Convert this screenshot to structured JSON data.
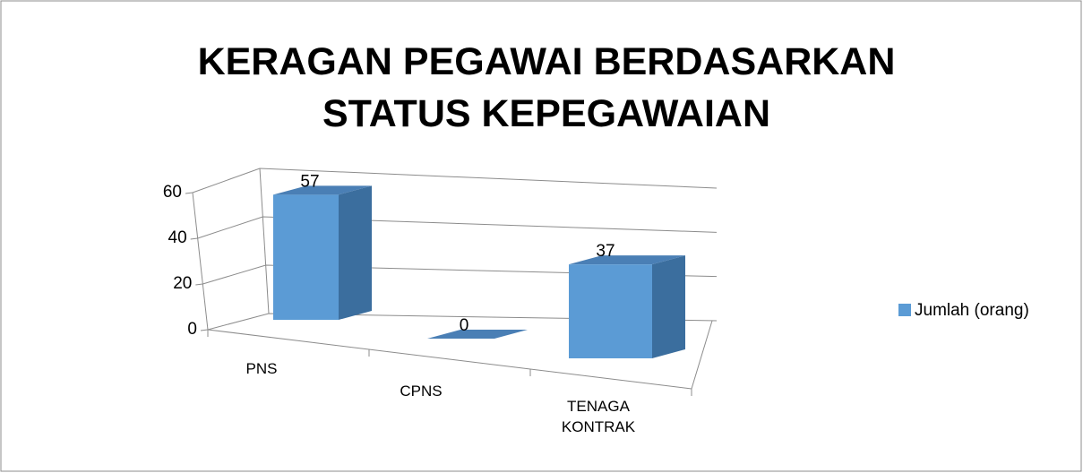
{
  "chart_data": {
    "type": "bar3d",
    "title": "KERAGAN PEGAWAI BERDASARKAN STATUS KEPEGAWAIAN",
    "categories": [
      "PNS",
      "CPNS",
      "TENAGA KONTRAK"
    ],
    "series": [
      {
        "name": "Jumlah (orang)",
        "color": "#5b9bd5",
        "values": [
          57,
          0,
          37
        ]
      }
    ],
    "ylim": [
      0,
      60
    ],
    "yticks": [
      0,
      20,
      40,
      60
    ],
    "grid": true,
    "legend": "right"
  }
}
